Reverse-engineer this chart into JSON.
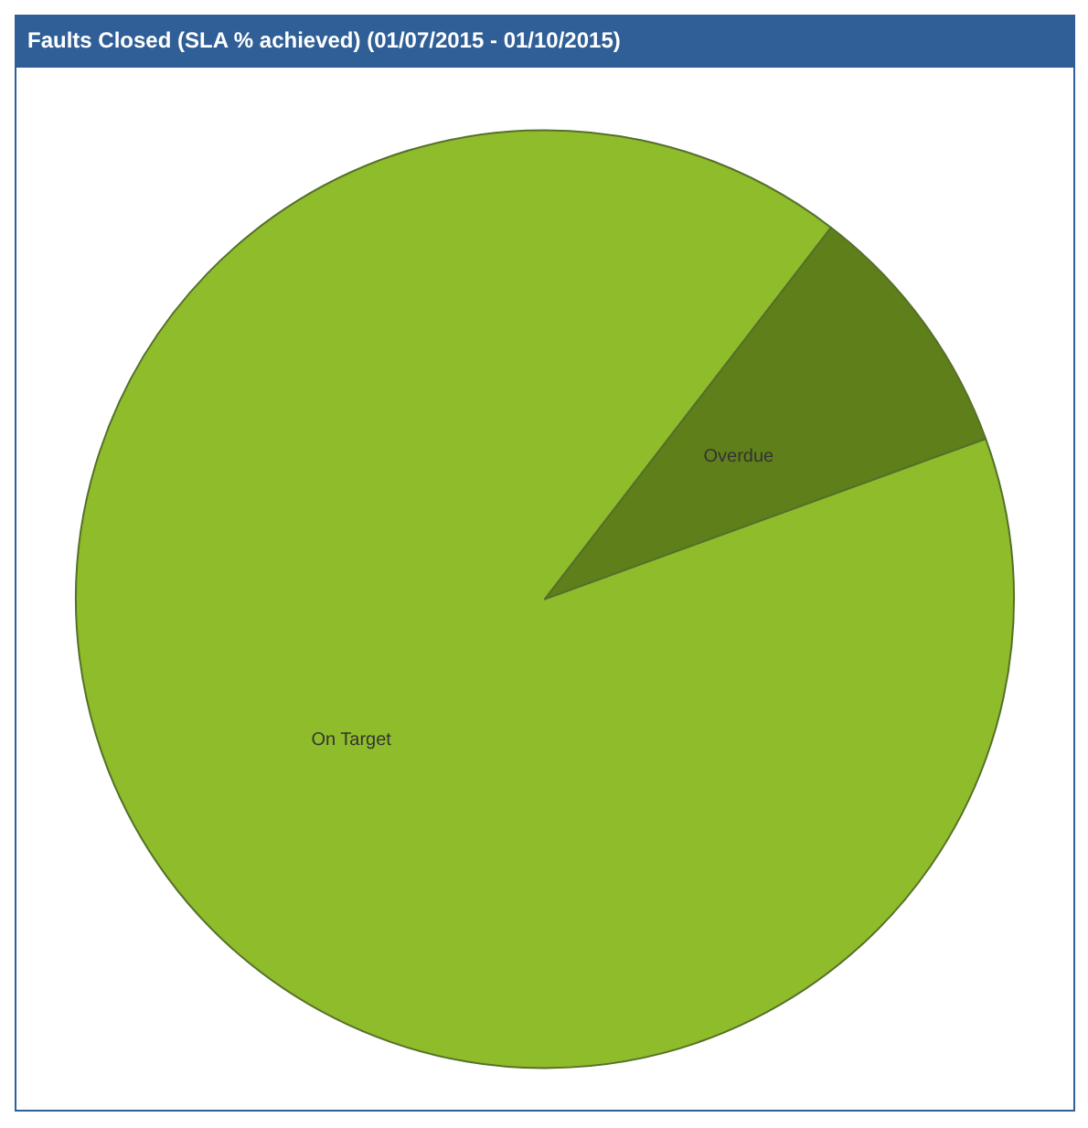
{
  "chart_data": {
    "type": "pie",
    "title": "Faults Closed (SLA % achieved) (01/07/2015 - 01/10/2015)",
    "categories": [
      "On Target",
      "Overdue"
    ],
    "values": [
      91,
      9
    ],
    "colors": [
      "#8fbc2a",
      "#5f7f1b"
    ],
    "legend": false
  }
}
